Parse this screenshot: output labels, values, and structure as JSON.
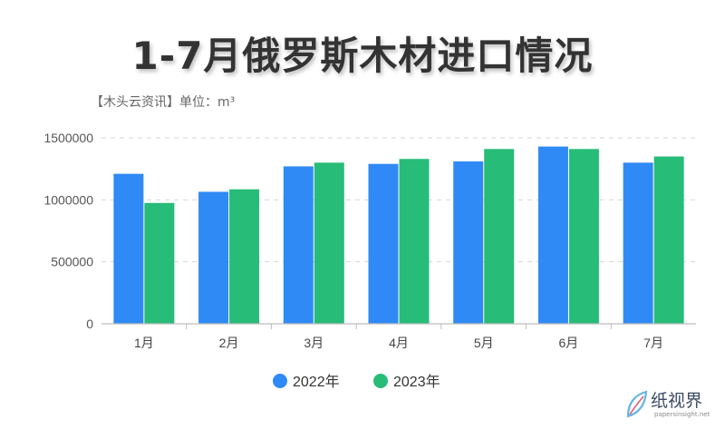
{
  "title": "1-7月俄罗斯木材进口情况",
  "subtitle": "【木头云资讯】单位：m³",
  "chart_data": {
    "type": "bar",
    "categories": [
      "1月",
      "2月",
      "3月",
      "4月",
      "5月",
      "6月",
      "7月"
    ],
    "series": [
      {
        "name": "2022年",
        "color": "#2f8af5",
        "values": [
          1210000,
          1065000,
          1270000,
          1290000,
          1310000,
          1430000,
          1300000
        ]
      },
      {
        "name": "2023年",
        "color": "#27bc78",
        "values": [
          975000,
          1085000,
          1300000,
          1330000,
          1410000,
          1410000,
          1350000
        ]
      }
    ],
    "ylim": [
      0,
      1500000
    ],
    "yticks": [
      "0",
      "500000",
      "1000000",
      "1500000"
    ],
    "grid": true,
    "legend_position": "bottom"
  },
  "watermark": {
    "name": "纸视界",
    "url": "papersinsight.net"
  }
}
